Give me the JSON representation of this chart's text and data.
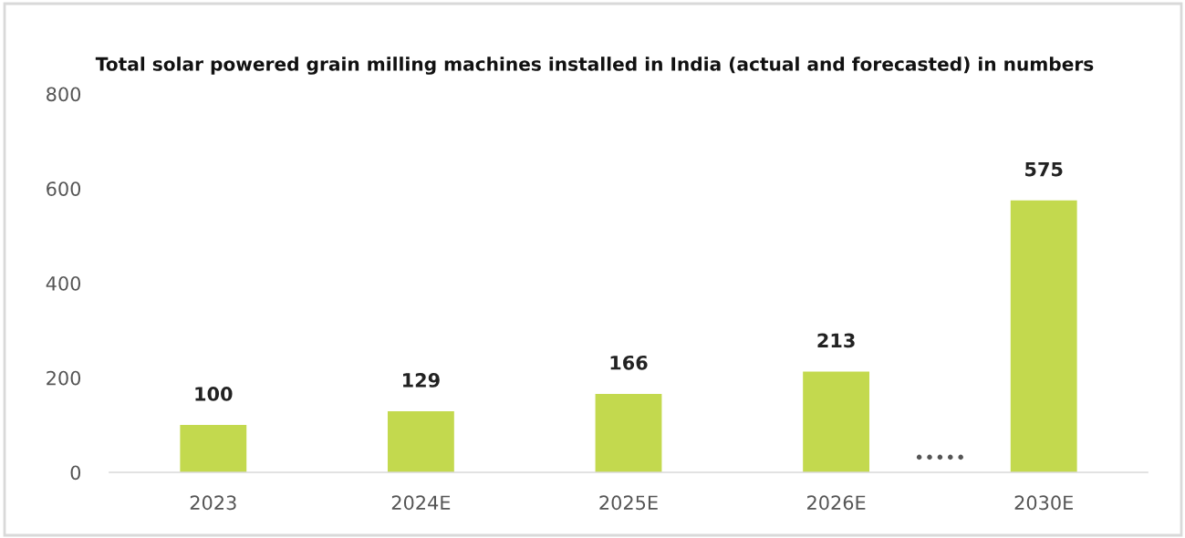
{
  "chart_data": {
    "type": "bar",
    "title": "Total solar powered grain milling machines installed in India (actual and forecasted) in numbers",
    "categories": [
      "2023",
      "2024E",
      "2025E",
      "2026E",
      "2030E"
    ],
    "values": [
      100,
      129,
      166,
      213,
      575
    ],
    "color": "#c3d94e",
    "ylim": [
      0,
      800
    ],
    "yticks": [
      0,
      200,
      400,
      600,
      800
    ],
    "data_labels": true,
    "grid": false
  }
}
